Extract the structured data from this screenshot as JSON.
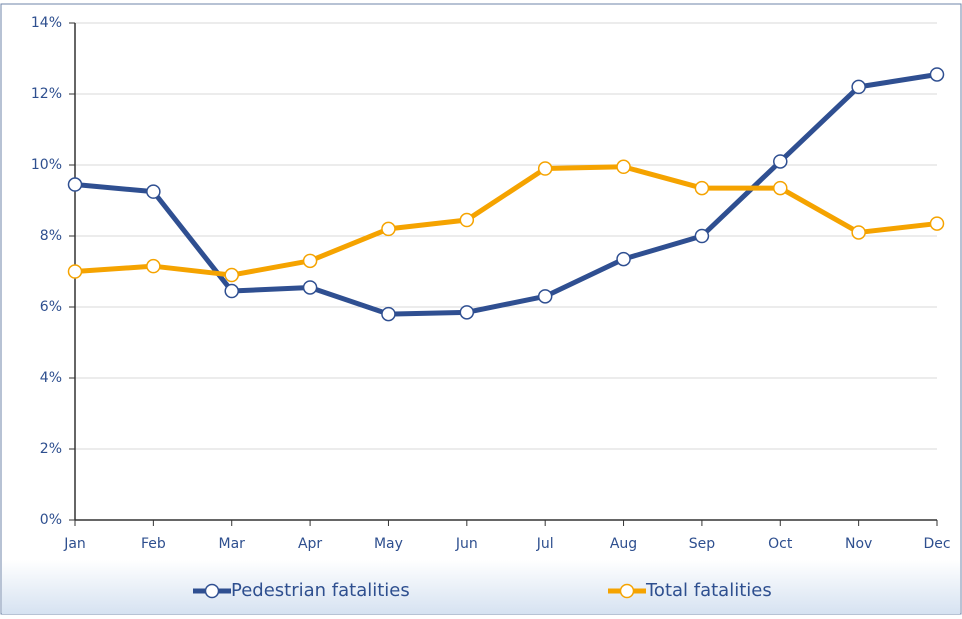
{
  "chart_data": {
    "type": "line",
    "categories": [
      "Jan",
      "Feb",
      "Mar",
      "Apr",
      "May",
      "Jun",
      "Jul",
      "Aug",
      "Sep",
      "Oct",
      "Nov",
      "Dec"
    ],
    "series": [
      {
        "name": "Pedestrian fatalities",
        "color": "#2f4f91",
        "values": [
          9.45,
          9.25,
          6.45,
          6.55,
          5.8,
          5.85,
          6.3,
          7.35,
          8.0,
          10.1,
          12.2,
          12.55
        ]
      },
      {
        "name": "Total fatalities",
        "color": "#f5a300",
        "values": [
          7.0,
          7.15,
          6.9,
          7.3,
          8.2,
          8.45,
          9.9,
          9.95,
          9.35,
          9.35,
          8.1,
          8.35
        ]
      }
    ],
    "ylim": [
      0,
      14
    ],
    "yticks": [
      {
        "value": 0,
        "label": "0%"
      },
      {
        "value": 2,
        "label": "2%"
      },
      {
        "value": 4,
        "label": "4%"
      },
      {
        "value": 6,
        "label": "6%"
      },
      {
        "value": 8,
        "label": "8%"
      },
      {
        "value": 10,
        "label": "10%"
      },
      {
        "value": 12,
        "label": "12%"
      },
      {
        "value": 14,
        "label": "14%"
      }
    ],
    "grid": true
  }
}
